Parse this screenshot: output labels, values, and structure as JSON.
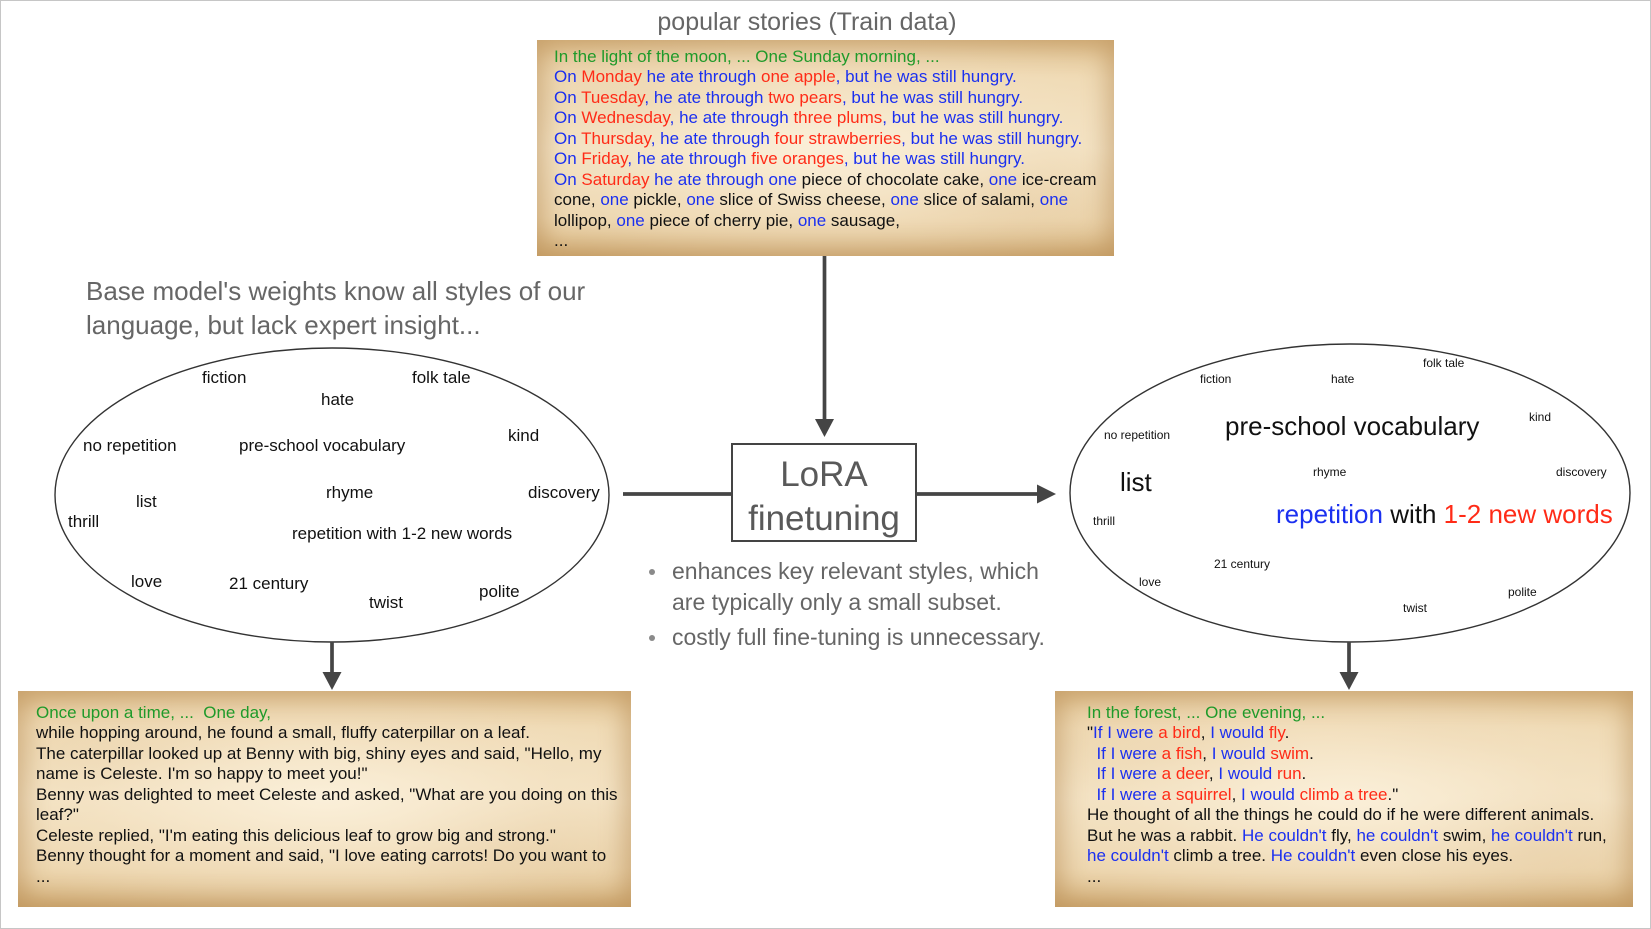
{
  "palette": {
    "green": "#1f9a2a",
    "red": "#ff2b17",
    "blue": "#1b30f0",
    "black": "#111111",
    "gray": "#666666"
  },
  "title": "popular stories (Train data)",
  "train_story": {
    "lines": [
      [
        {
          "t": "In the light of the moon, ... One Sunday morning, ...",
          "c": "green"
        }
      ],
      [
        {
          "t": "On ",
          "c": "blue"
        },
        {
          "t": "Monday",
          "c": "red"
        },
        {
          "t": " he ate through ",
          "c": "blue"
        },
        {
          "t": "one apple",
          "c": "red"
        },
        {
          "t": ", but he was still hungry.",
          "c": "blue"
        }
      ],
      [
        {
          "t": "On ",
          "c": "blue"
        },
        {
          "t": "Tuesday",
          "c": "red"
        },
        {
          "t": ", he ate through ",
          "c": "blue"
        },
        {
          "t": "two pears",
          "c": "red"
        },
        {
          "t": ", but he was still hungry.",
          "c": "blue"
        }
      ],
      [
        {
          "t": "On ",
          "c": "blue"
        },
        {
          "t": "Wednesday",
          "c": "red"
        },
        {
          "t": ", he ate through ",
          "c": "blue"
        },
        {
          "t": "three plums",
          "c": "red"
        },
        {
          "t": ", but he was still hungry.",
          "c": "blue"
        }
      ],
      [
        {
          "t": "On ",
          "c": "blue"
        },
        {
          "t": "Thursday",
          "c": "red"
        },
        {
          "t": ", he ate through ",
          "c": "blue"
        },
        {
          "t": "four strawberries",
          "c": "red"
        },
        {
          "t": ", but he was still hungry.",
          "c": "blue"
        }
      ],
      [
        {
          "t": "On ",
          "c": "blue"
        },
        {
          "t": "Friday",
          "c": "red"
        },
        {
          "t": ", he ate through ",
          "c": "blue"
        },
        {
          "t": "five oranges",
          "c": "red"
        },
        {
          "t": ", but he was still hungry.",
          "c": "blue"
        }
      ],
      [
        {
          "t": "On ",
          "c": "blue"
        },
        {
          "t": "Saturday",
          "c": "red"
        },
        {
          "t": " he ate through one",
          "c": "blue"
        },
        {
          "t": " piece of chocolate cake, ",
          "c": "black"
        },
        {
          "t": "one",
          "c": "blue"
        },
        {
          "t": " ice-cream",
          "c": "black"
        }
      ],
      [
        {
          "t": "cone, ",
          "c": "black"
        },
        {
          "t": "one",
          "c": "blue"
        },
        {
          "t": " pickle, ",
          "c": "black"
        },
        {
          "t": "one",
          "c": "blue"
        },
        {
          "t": " slice of Swiss cheese, ",
          "c": "black"
        },
        {
          "t": "one",
          "c": "blue"
        },
        {
          "t": " slice of salami, ",
          "c": "black"
        },
        {
          "t": "one",
          "c": "blue"
        }
      ],
      [
        {
          "t": "lollipop, ",
          "c": "black"
        },
        {
          "t": "one",
          "c": "blue"
        },
        {
          "t": " piece of cherry pie, ",
          "c": "black"
        },
        {
          "t": "one",
          "c": "blue"
        },
        {
          "t": " sausage,",
          "c": "black"
        }
      ],
      [
        {
          "t": "...",
          "c": "black"
        }
      ]
    ]
  },
  "base_model_caption": "Base model's weights know all styles of our language, but lack expert insight...",
  "base_model_styles": [
    "fiction",
    "folk tale",
    "hate",
    "kind",
    "no repetition",
    "pre-school vocabulary",
    "rhyme",
    "discovery",
    "list",
    "thrill",
    "repetition with 1-2 new words",
    "love",
    "21 century",
    "polite",
    "twist"
  ],
  "lora": {
    "line1": "LoRA",
    "line2": "finetuning"
  },
  "lora_notes": [
    "enhances key relevant styles, which are typically only a small subset.",
    "costly full fine-tuning is unnecessary."
  ],
  "finetuned_styles": {
    "words": [
      "folk tale",
      "fiction",
      "hate",
      "kind",
      "no repetition",
      "pre-school vocabulary",
      "rhyme",
      "discovery",
      "list",
      "thrill",
      "21 century",
      "love",
      "polite",
      "twist"
    ],
    "highlight": [
      {
        "t": "repetition",
        "c": "blue"
      },
      {
        "t": " with ",
        "c": "black"
      },
      {
        "t": "1-2 new words",
        "c": "red"
      }
    ]
  },
  "base_output_story": {
    "lines": [
      [
        {
          "t": "Once upon a time, ...  One day,",
          "c": "green"
        }
      ],
      [
        {
          "t": "while hopping around, he found a small, fluffy caterpillar on a leaf.",
          "c": "black"
        }
      ],
      [
        {
          "t": "The caterpillar looked up at Benny with big, shiny eyes and said, \"Hello, my",
          "c": "black"
        }
      ],
      [
        {
          "t": "name is Celeste. I'm so happy to meet you!\"",
          "c": "black"
        }
      ],
      [
        {
          "t": "Benny was delighted to meet Celeste and asked, \"What are you doing on this",
          "c": "black"
        }
      ],
      [
        {
          "t": "leaf?\"",
          "c": "black"
        }
      ],
      [
        {
          "t": "Celeste replied, \"I'm eating this delicious leaf to grow big and strong.\"",
          "c": "black"
        }
      ],
      [
        {
          "t": "Benny thought for a moment and said, \"I love eating carrots! Do you want to",
          "c": "black"
        }
      ],
      [
        {
          "t": "...",
          "c": "black"
        }
      ]
    ]
  },
  "finetuned_output_story": {
    "lines": [
      [
        {
          "t": "In the forest, ... One evening, ...",
          "c": "green"
        }
      ],
      [
        {
          "t": "\"",
          "c": "black"
        },
        {
          "t": "If I were",
          "c": "blue"
        },
        {
          "t": " a bird",
          "c": "red"
        },
        {
          "t": ", ",
          "c": "black"
        },
        {
          "t": "I would",
          "c": "blue"
        },
        {
          "t": " fly",
          "c": "red"
        },
        {
          "t": ".",
          "c": "black"
        }
      ],
      [
        {
          "t": "  If I were",
          "c": "blue"
        },
        {
          "t": " a fish",
          "c": "red"
        },
        {
          "t": ", ",
          "c": "black"
        },
        {
          "t": "I would",
          "c": "blue"
        },
        {
          "t": " swim",
          "c": "red"
        },
        {
          "t": ".",
          "c": "black"
        }
      ],
      [
        {
          "t": "  If I were",
          "c": "blue"
        },
        {
          "t": " a deer",
          "c": "red"
        },
        {
          "t": ", ",
          "c": "black"
        },
        {
          "t": "I would",
          "c": "blue"
        },
        {
          "t": " run",
          "c": "red"
        },
        {
          "t": ".",
          "c": "black"
        }
      ],
      [
        {
          "t": "  If I were",
          "c": "blue"
        },
        {
          "t": " a squirrel",
          "c": "red"
        },
        {
          "t": ", ",
          "c": "black"
        },
        {
          "t": "I would",
          "c": "blue"
        },
        {
          "t": " climb a tree",
          "c": "red"
        },
        {
          "t": ".\"",
          "c": "black"
        }
      ],
      [
        {
          "t": "He thought of all the things he could do if he were different animals.",
          "c": "black"
        }
      ],
      [
        {
          "t": "But he was a rabbit. ",
          "c": "black"
        },
        {
          "t": "He couldn't",
          "c": "blue"
        },
        {
          "t": " fly, ",
          "c": "black"
        },
        {
          "t": "he couldn't",
          "c": "blue"
        },
        {
          "t": " swim, ",
          "c": "black"
        },
        {
          "t": "he couldn't",
          "c": "blue"
        },
        {
          "t": " run,",
          "c": "black"
        }
      ],
      [
        {
          "t": "he couldn't",
          "c": "blue"
        },
        {
          "t": " climb a tree. ",
          "c": "black"
        },
        {
          "t": "He couldn't",
          "c": "blue"
        },
        {
          "t": " even close his eyes.",
          "c": "black"
        }
      ],
      [
        {
          "t": "...",
          "c": "black"
        }
      ]
    ]
  }
}
